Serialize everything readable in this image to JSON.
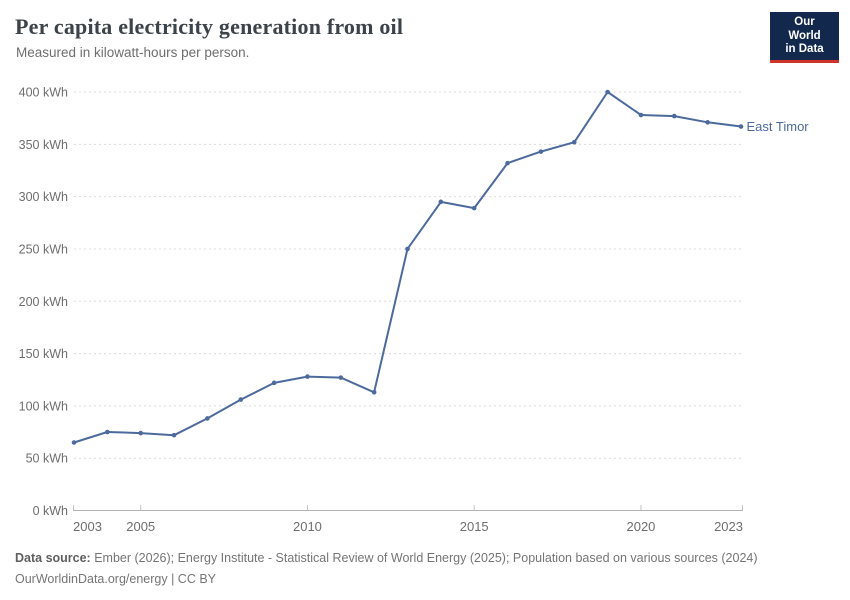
{
  "header": {
    "title": "Per capita electricity generation from oil",
    "subtitle": "Measured in kilowatt-hours per person.",
    "logo": {
      "line1": "Our World",
      "line2": "in Data"
    }
  },
  "chart_data": {
    "type": "line",
    "title": "Per capita electricity generation from oil",
    "subtitle": "Measured in kilowatt-hours per person.",
    "x": [
      2003,
      2004,
      2005,
      2006,
      2007,
      2008,
      2009,
      2010,
      2011,
      2012,
      2013,
      2014,
      2015,
      2016,
      2017,
      2018,
      2019,
      2020,
      2021,
      2022,
      2023
    ],
    "series": [
      {
        "name": "East Timor",
        "color": "#4d6a9d",
        "values": [
          65,
          75,
          74,
          72,
          88,
          106,
          122,
          128,
          127,
          113,
          250,
          295,
          289,
          332,
          343,
          352,
          400,
          378,
          377,
          371,
          367
        ]
      }
    ],
    "xlim": [
      2003,
      2023
    ],
    "ylim": [
      0,
      400
    ],
    "y_ticks": [
      0,
      50,
      100,
      150,
      200,
      250,
      300,
      350,
      400
    ],
    "y_unit": " kWh",
    "x_tick_labels": [
      2003,
      2005,
      2010,
      2015,
      2020,
      2023
    ],
    "x_tick_marks": [
      2005,
      2010,
      2015,
      2020
    ],
    "grid": "horizontal-dashed",
    "legend_position": "end-of-line-label"
  },
  "footer": {
    "source_label": "Data source:",
    "sources": "Ember (2026); Energy Institute - Statistical Review of World Energy (2025); Population based on various sources (2024)",
    "license": "OurWorldinData.org/energy | CC BY"
  },
  "colors": {
    "line": "#4d6a9d",
    "grid": "#dcdcdc",
    "axis_line": "#b3b3b3",
    "tick_mark": "#c4c4c4",
    "axis_text": "#6e6e6e",
    "title": "#3d434a",
    "logo_bg": "#12294d",
    "logo_red": "#cf342b"
  }
}
